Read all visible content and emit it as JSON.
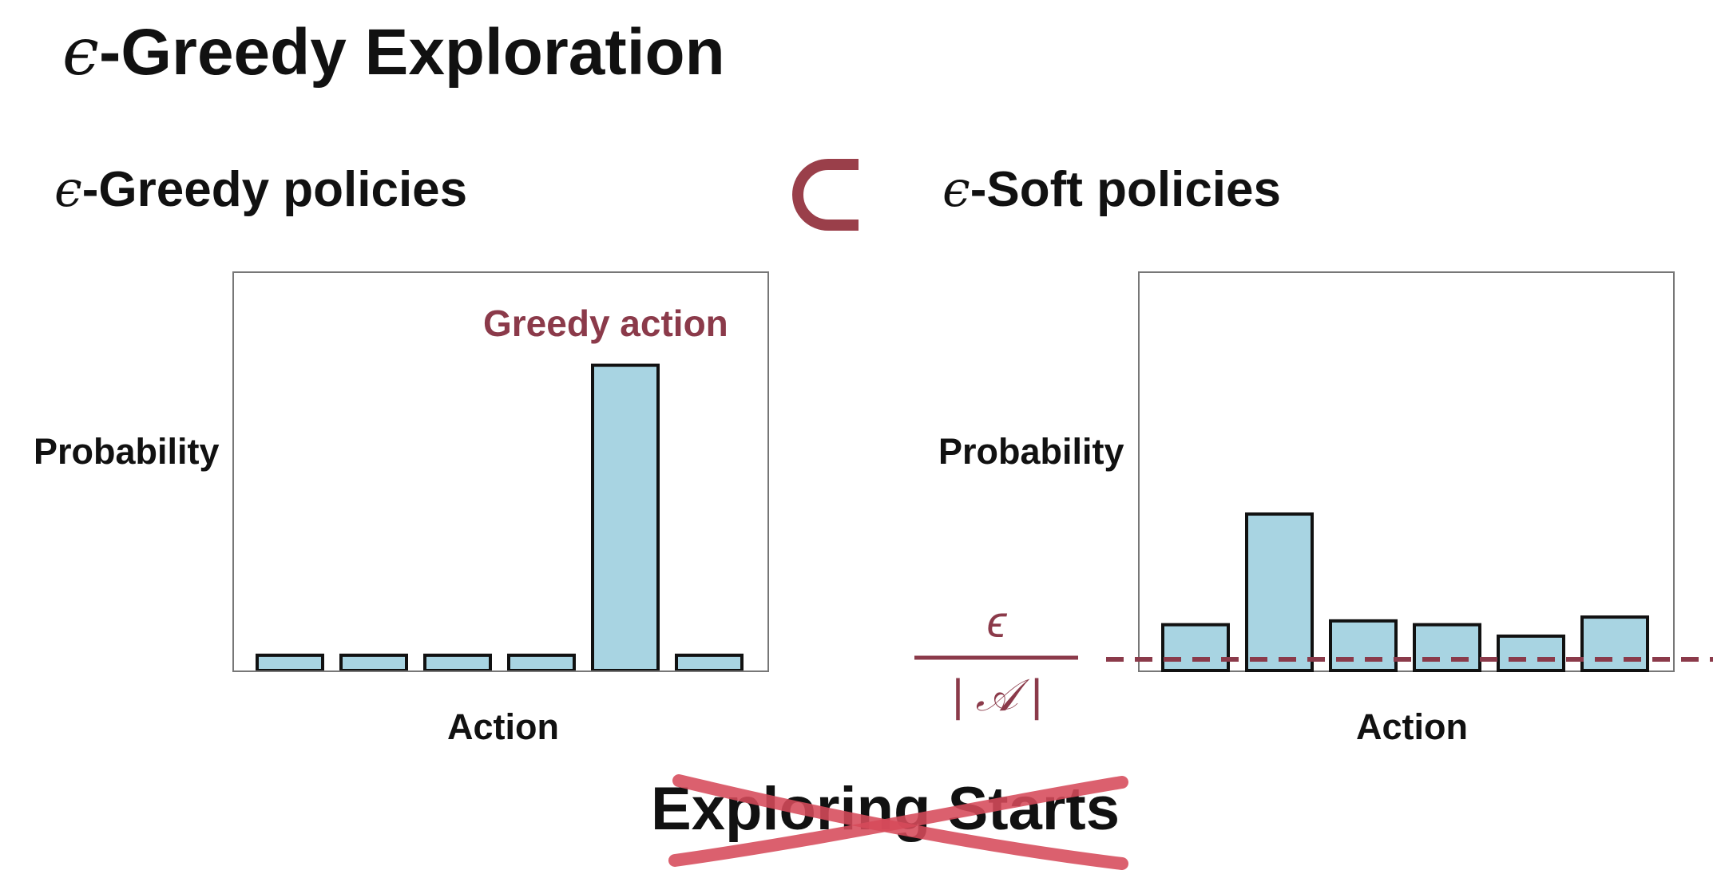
{
  "slide": {
    "title_symbol": "ϵ",
    "title_text": "-Greedy Exploration"
  },
  "left_panel": {
    "heading_symbol": "ϵ",
    "heading_text": "-Greedy policies",
    "annotation": "Greedy action"
  },
  "right_panel": {
    "heading_symbol": "ϵ",
    "heading_text": "-Soft policies"
  },
  "relation": {
    "symbol_name": "subset-icon",
    "color": "#9a3f4a"
  },
  "fraction": {
    "numerator": "ϵ",
    "denominator": "| 𝒜 |"
  },
  "crossed_out": {
    "text": "Exploring Starts",
    "icon": "cross-out-mark"
  },
  "colors": {
    "bar_fill": "#a8d4e2",
    "bar_stroke": "#111111",
    "accent": "#8b3a4a",
    "cross": "#d64a5a"
  },
  "chart_data": [
    {
      "type": "bar",
      "title": "",
      "xlabel": "Action",
      "ylabel": "Probability",
      "categories": [
        "",
        "",
        "",
        "",
        "",
        ""
      ],
      "values": [
        0.04,
        0.04,
        0.04,
        0.04,
        0.8,
        0.04
      ],
      "ylim": [
        0,
        1
      ],
      "grid": false,
      "annotation": {
        "text": "Greedy action",
        "category_index": 4
      }
    },
    {
      "type": "bar",
      "title": "",
      "xlabel": "Action",
      "ylabel": "Probability",
      "categories": [
        "",
        "",
        "",
        "",
        "",
        ""
      ],
      "values": [
        0.12,
        0.41,
        0.13,
        0.12,
        0.09,
        0.14
      ],
      "ylim": [
        0,
        1
      ],
      "grid": false,
      "reference_line": {
        "value": 0.03,
        "label": "ϵ / |𝒜|",
        "style": "dashed"
      }
    }
  ]
}
